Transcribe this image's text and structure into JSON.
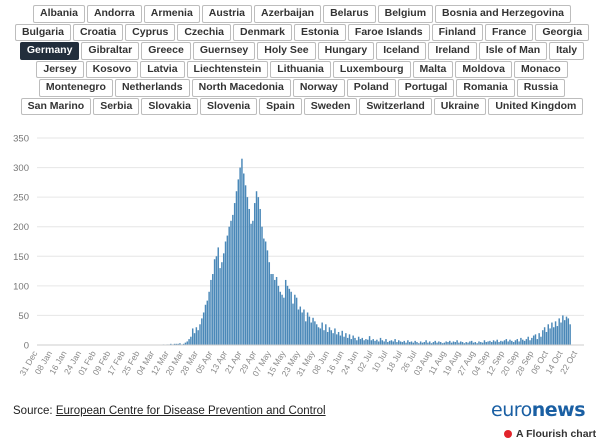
{
  "countries": {
    "rows": [
      [
        "Albania",
        "Andorra",
        "Armenia",
        "Austria",
        "Azerbaijan",
        "Belarus",
        "Belgium",
        "Bosnia and Herzegovina"
      ],
      [
        "Bulgaria",
        "Croatia",
        "Cyprus",
        "Czechia",
        "Denmark",
        "Estonia",
        "Faroe Islands",
        "Finland",
        "France",
        "Georgia"
      ],
      [
        "Germany",
        "Gibraltar",
        "Greece",
        "Guernsey",
        "Holy See",
        "Hungary",
        "Iceland",
        "Ireland",
        "Isle of Man",
        "Italy"
      ],
      [
        "Jersey",
        "Kosovo",
        "Latvia",
        "Liechtenstein",
        "Lithuania",
        "Luxembourg",
        "Malta",
        "Moldova",
        "Monaco"
      ],
      [
        "Montenegro",
        "Netherlands",
        "North Macedonia",
        "Norway",
        "Poland",
        "Portugal",
        "Romania",
        "Russia"
      ],
      [
        "San Marino",
        "Serbia",
        "Slovakia",
        "Slovenia",
        "Spain",
        "Sweden",
        "Switzerland",
        "Ukraine",
        "United Kingdom"
      ]
    ],
    "selected": "Germany"
  },
  "footer": {
    "source_label": "Source: ",
    "source_link": "European Centre for Disease Prevention and Control",
    "brand_part1": "euro",
    "brand_part2": "news",
    "brand_dot": ".",
    "flourish": "A Flourish chart"
  },
  "colors": {
    "bar": "#4a88b8",
    "selected_button": "#222e3c",
    "brand": "#1a5fa3",
    "flourish_icon": "#e2242b"
  },
  "chart_data": {
    "type": "bar",
    "x_start": "2019-12-31",
    "x_end": "2020-10-25",
    "ylim": [
      0,
      350
    ],
    "yticks": [
      0,
      50,
      100,
      150,
      200,
      250,
      300,
      350
    ],
    "xticks": [
      "31 Dec",
      "08 Jan",
      "16 Jan",
      "24 Jan",
      "01 Feb",
      "09 Feb",
      "17 Feb",
      "25 Feb",
      "04 Mar",
      "12 Mar",
      "20 Mar",
      "28 Mar",
      "05 Apr",
      "13 Apr",
      "21 Apr",
      "29 Apr",
      "07 May",
      "15 May",
      "23 May",
      "31 May",
      "08 Jun",
      "16 Jun",
      "24 Jun",
      "02 Jul",
      "10 Jul",
      "18 Jul",
      "26 Jul",
      "03 Aug",
      "11 Aug",
      "19 Aug",
      "27 Aug",
      "04 Sep",
      "12 Sep",
      "20 Sep",
      "28 Sep",
      "06 Oct",
      "14 Oct",
      "22 Oct"
    ],
    "grid": true,
    "series": [
      {
        "values": [
          0,
          0,
          0,
          0,
          0,
          0,
          0,
          0,
          0,
          0,
          0,
          0,
          0,
          0,
          0,
          0,
          0,
          0,
          0,
          0,
          0,
          0,
          0,
          0,
          0,
          0,
          0,
          0,
          0,
          0,
          0,
          0,
          0,
          0,
          0,
          0,
          0,
          0,
          0,
          0,
          0,
          0,
          0,
          0,
          0,
          0,
          0,
          0,
          0,
          0,
          0,
          0,
          0,
          0,
          0,
          0,
          0,
          0,
          0,
          0,
          0,
          0,
          0,
          0,
          0,
          0,
          0,
          0,
          0,
          1,
          0,
          1,
          1,
          2,
          1,
          2,
          2,
          2,
          3,
          1,
          2,
          4,
          6,
          10,
          14,
          28,
          20,
          30,
          25,
          35,
          45,
          55,
          68,
          75,
          90,
          110,
          120,
          145,
          150,
          165,
          130,
          140,
          155,
          175,
          185,
          200,
          210,
          220,
          240,
          260,
          280,
          300,
          315,
          290,
          270,
          250,
          230,
          205,
          210,
          240,
          260,
          250,
          230,
          200,
          180,
          175,
          160,
          140,
          120,
          120,
          110,
          115,
          100,
          90,
          85,
          80,
          110,
          100,
          95,
          90,
          70,
          85,
          80,
          60,
          65,
          55,
          60,
          40,
          55,
          48,
          38,
          46,
          40,
          35,
          30,
          28,
          38,
          25,
          35,
          22,
          30,
          25,
          20,
          28,
          18,
          22,
          16,
          24,
          14,
          20,
          12,
          18,
          10,
          16,
          12,
          8,
          14,
          10,
          12,
          8,
          10,
          9,
          15,
          8,
          10,
          7,
          9,
          6,
          12,
          8,
          6,
          10,
          5,
          7,
          8,
          6,
          10,
          5,
          8,
          6,
          5,
          7,
          4,
          8,
          5,
          6,
          4,
          7,
          5,
          3,
          6,
          4,
          5,
          8,
          4,
          6,
          3,
          5,
          7,
          4,
          6,
          5,
          3,
          4,
          6,
          5,
          7,
          4,
          6,
          5,
          8,
          4,
          6,
          5,
          3,
          5,
          4,
          6,
          7,
          4,
          5,
          3,
          6,
          5,
          4,
          8,
          5,
          6,
          7,
          5,
          8,
          6,
          9,
          5,
          7,
          6,
          8,
          10,
          6,
          9,
          7,
          5,
          8,
          10,
          6,
          12,
          9,
          7,
          10,
          14,
          8,
          12,
          16,
          18,
          10,
          20,
          14,
          25,
          30,
          22,
          35,
          28,
          38,
          30,
          40,
          32,
          45,
          38,
          50,
          42,
          48,
          45,
          35
        ]
      }
    ]
  }
}
